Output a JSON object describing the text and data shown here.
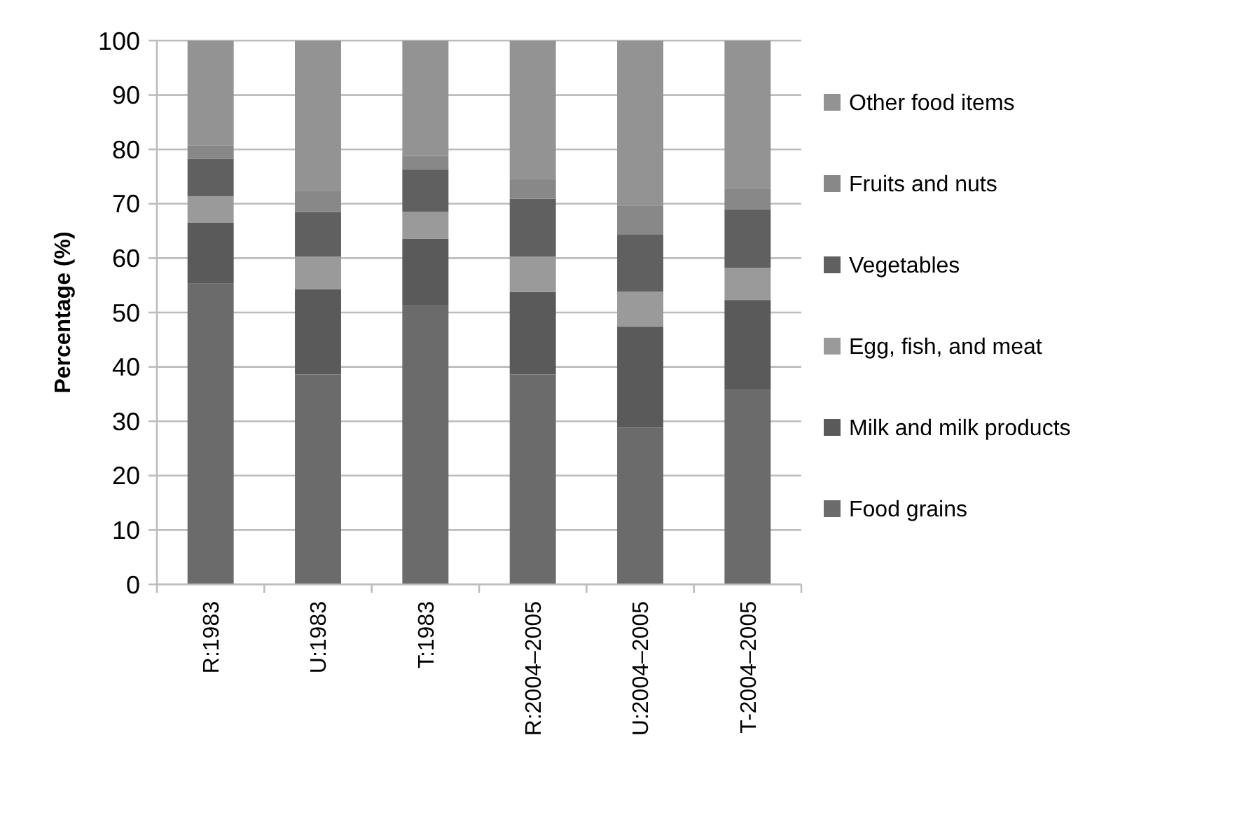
{
  "chart_data": {
    "type": "bar",
    "stacked": true,
    "ylabel": "Percentage (%)",
    "categories": [
      "R:1983",
      "U:1983",
      "T:1983",
      "R:2004–2005",
      "U:2004–2005",
      "T-2004–2005"
    ],
    "series": [
      {
        "name": "Food grains",
        "color": "#6b6b6b",
        "values": [
          55.4,
          38.6,
          51.2,
          38.6,
          28.8,
          35.8
        ]
      },
      {
        "name": "Milk and milk products",
        "color": "#5a5a5a",
        "values": [
          11.1,
          15.7,
          12.4,
          15.2,
          18.6,
          16.5
        ]
      },
      {
        "name": "Egg, fish, and meat",
        "color": "#9a9a9a",
        "values": [
          4.9,
          6.0,
          4.9,
          6.5,
          6.4,
          5.9
        ]
      },
      {
        "name": "Vegetables",
        "color": "#606060",
        "values": [
          6.9,
          8.2,
          7.8,
          10.6,
          10.6,
          10.8
        ]
      },
      {
        "name": "Fruits and nuts",
        "color": "#888888",
        "values": [
          2.4,
          3.9,
          2.5,
          3.6,
          5.2,
          3.9
        ]
      },
      {
        "name": "Other food items",
        "color": "#939393",
        "values": [
          19.3,
          27.6,
          21.2,
          25.5,
          30.4,
          27.1
        ]
      }
    ],
    "ylim": [
      0,
      100
    ],
    "yticks": [
      0,
      10,
      20,
      30,
      40,
      50,
      60,
      70,
      80,
      90,
      100
    ],
    "grid": "y",
    "legend": "right"
  }
}
